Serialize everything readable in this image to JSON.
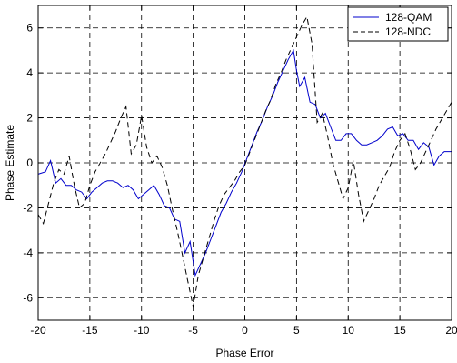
{
  "chart_data": {
    "type": "line",
    "title": "",
    "xlabel": "Phase Error",
    "ylabel": "Phase Estimate",
    "xlim": [
      -20,
      20
    ],
    "ylim": [
      -7,
      7
    ],
    "xticks": [
      -20,
      -15,
      -10,
      -5,
      0,
      5,
      10,
      15,
      20
    ],
    "yticks": [
      -6,
      -4,
      -2,
      0,
      2,
      4,
      6
    ],
    "xtick_labels": [
      "-20",
      "-15",
      "-10",
      "-5",
      "0",
      "5",
      "10",
      "15",
      "20"
    ],
    "ytick_labels": [
      "-6",
      "-4",
      "-2",
      "0",
      "2",
      "4",
      "6"
    ],
    "grid": true,
    "legend_position": "top-right",
    "series": [
      {
        "name": "128-QAM",
        "color": "#0000cc",
        "dash": "solid",
        "x": [
          -20,
          -19.3,
          -18.8,
          -18.6,
          -18.3,
          -17.8,
          -17.3,
          -16.8,
          -16.3,
          -15.8,
          -15.3,
          -14.8,
          -14.3,
          -13.8,
          -13.3,
          -12.8,
          -12.3,
          -11.8,
          -11.3,
          -10.8,
          -10.3,
          -9.8,
          -9.3,
          -8.8,
          -8.3,
          -7.8,
          -7.3,
          -6.8,
          -6.3,
          -5.8,
          -5.3,
          -4.8,
          -4.3,
          -3.8,
          -3.3,
          -2.8,
          -2.3,
          -1.8,
          -1.3,
          -0.8,
          -0.3,
          0.2,
          0.7,
          1.2,
          1.7,
          2.2,
          2.7,
          3.2,
          3.7,
          4.2,
          4.7,
          5.0,
          5.3,
          5.8,
          6.3,
          6.8,
          7.3,
          7.8,
          8.3,
          8.8,
          9.3,
          9.8,
          10.3,
          10.8,
          11.3,
          11.8,
          12.3,
          12.8,
          13.3,
          13.8,
          14.3,
          14.8,
          15.3,
          15.8,
          16.3,
          16.8,
          17.3,
          17.8,
          18.3,
          18.8,
          19.3,
          20
        ],
        "y": [
          -0.5,
          -0.4,
          0.1,
          -0.3,
          -0.9,
          -0.7,
          -1.0,
          -1.0,
          -1.2,
          -1.3,
          -1.6,
          -1.3,
          -1.1,
          -0.9,
          -0.8,
          -0.8,
          -0.9,
          -1.1,
          -1.0,
          -1.2,
          -1.6,
          -1.4,
          -1.2,
          -1.0,
          -1.4,
          -1.9,
          -2.0,
          -2.5,
          -2.6,
          -4.0,
          -3.5,
          -5.0,
          -4.5,
          -4.0,
          -3.4,
          -2.8,
          -2.2,
          -1.8,
          -1.3,
          -0.9,
          -0.4,
          0.2,
          0.8,
          1.4,
          1.9,
          2.5,
          3.0,
          3.6,
          4.1,
          4.6,
          5.0,
          4.1,
          3.4,
          3.8,
          2.7,
          2.6,
          2.0,
          2.2,
          1.6,
          1.0,
          1.0,
          1.3,
          1.3,
          1.0,
          0.8,
          0.8,
          0.9,
          1.0,
          1.2,
          1.5,
          1.6,
          1.2,
          1.3,
          1.0,
          1.0,
          0.6,
          0.9,
          0.7,
          -0.1,
          0.3,
          0.5,
          0.5
        ]
      },
      {
        "name": "128-NDC",
        "color": "#000000",
        "dash": "dashed",
        "x": [
          -20,
          -19.5,
          -19,
          -18.5,
          -18,
          -17.5,
          -17,
          -16.5,
          -16,
          -15.5,
          -15,
          -14.5,
          -14,
          -13.5,
          -13,
          -12.5,
          -12,
          -11.5,
          -11,
          -10.5,
          -10,
          -9.5,
          -9,
          -8.5,
          -8,
          -7.5,
          -7,
          -6.5,
          -6,
          -5.5,
          -5,
          -4.5,
          -4,
          -3.5,
          -3,
          -2.5,
          -2,
          -1.5,
          -1,
          -0.5,
          0,
          0.5,
          1,
          1.5,
          2,
          2.5,
          3,
          3.5,
          4,
          4.5,
          5,
          5.5,
          6,
          6.5,
          7,
          7.5,
          8,
          8.5,
          9,
          9.5,
          10,
          10.5,
          11,
          11.5,
          12,
          12.5,
          13,
          13.5,
          14,
          14.5,
          15,
          15.5,
          16,
          16.5,
          17,
          17.5,
          18,
          18.5,
          19,
          19.5,
          20
        ],
        "y": [
          -2.3,
          -2.7,
          -1.8,
          -0.9,
          -0.3,
          -0.5,
          0.3,
          -1.0,
          -2.0,
          -1.8,
          -1.0,
          -0.4,
          0.0,
          0.4,
          0.9,
          1.4,
          2.0,
          2.5,
          0.4,
          0.8,
          2.1,
          0.7,
          0.0,
          0.3,
          -0.2,
          -1.0,
          -2.1,
          -3.1,
          -4.2,
          -5.3,
          -6.4,
          -5.0,
          -4.2,
          -3.4,
          -2.6,
          -1.9,
          -1.4,
          -1.1,
          -0.8,
          -0.4,
          -0.1,
          0.5,
          1.1,
          1.7,
          2.3,
          2.8,
          3.5,
          4.0,
          4.6,
          5.1,
          5.6,
          6.1,
          6.5,
          5.3,
          1.8,
          2.2,
          1.2,
          0.0,
          -0.8,
          -1.6,
          -1.1,
          0.1,
          -1.4,
          -2.6,
          -2.1,
          -1.6,
          -1.0,
          -0.6,
          -0.2,
          0.5,
          1.0,
          1.3,
          0.6,
          -0.3,
          0.0,
          0.5,
          1.0,
          1.5,
          1.9,
          2.3,
          2.7
        ]
      }
    ]
  }
}
